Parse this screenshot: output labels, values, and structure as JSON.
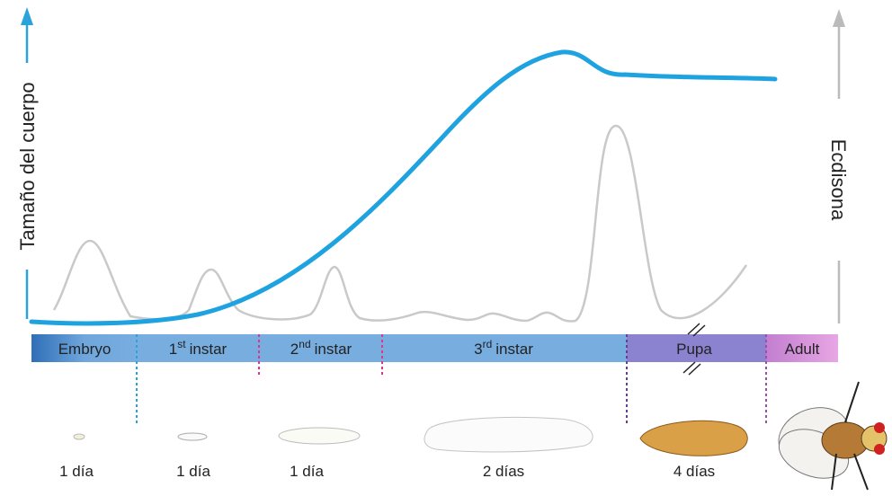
{
  "axes": {
    "left": "Tamaño del cuerpo",
    "right": "Ecdisona"
  },
  "stages": [
    {
      "label": "Embryo"
    },
    {
      "number": "1",
      "sup": "st",
      "label": "instar"
    },
    {
      "number": "2",
      "sup": "nd",
      "label": "instar"
    },
    {
      "number": "3",
      "sup": "rd",
      "label": "instar"
    },
    {
      "label": "Pupa"
    },
    {
      "label": "Adult"
    }
  ],
  "durations": [
    "1 día",
    "1 día",
    "1 día",
    "2 días",
    "4 días"
  ]
}
